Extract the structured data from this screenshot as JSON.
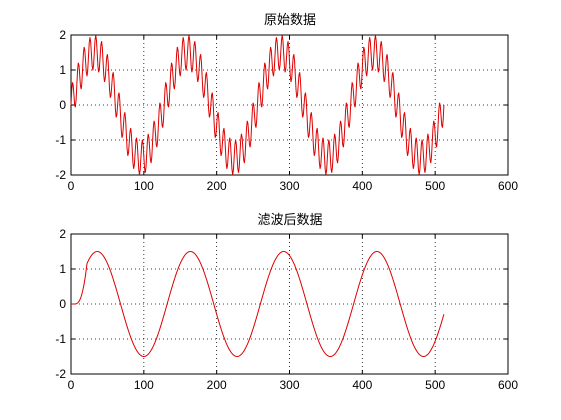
{
  "chart_data": [
    {
      "type": "line",
      "title": "原始数据",
      "xlabel": "",
      "ylabel": "",
      "xlim": [
        0,
        600
      ],
      "ylim": [
        -2,
        2
      ],
      "xticks": [
        0,
        100,
        200,
        300,
        400,
        500,
        600
      ],
      "yticks": [
        -2,
        -1,
        0,
        1,
        2
      ],
      "grid": true,
      "series": [
        {
          "color": "#dd0000",
          "x_range": [
            0,
            512
          ],
          "n_points": 513,
          "components": [
            {
              "amplitude": 1.5,
              "period": 128
            },
            {
              "amplitude": 0.5,
              "period": 8
            }
          ]
        }
      ]
    },
    {
      "type": "line",
      "title": "滤波后数据",
      "xlabel": "",
      "ylabel": "",
      "xlim": [
        0,
        600
      ],
      "ylim": [
        -2,
        2
      ],
      "xticks": [
        0,
        100,
        200,
        300,
        400,
        500,
        600
      ],
      "yticks": [
        -2,
        -1,
        0,
        1,
        2
      ],
      "grid": true,
      "series": [
        {
          "color": "#dd0000",
          "x_range": [
            0,
            512
          ],
          "n_points": 513,
          "delay": 4,
          "ramp_end": 22,
          "components": [
            {
              "amplitude": 1.5,
              "period": 128
            }
          ]
        }
      ]
    }
  ]
}
